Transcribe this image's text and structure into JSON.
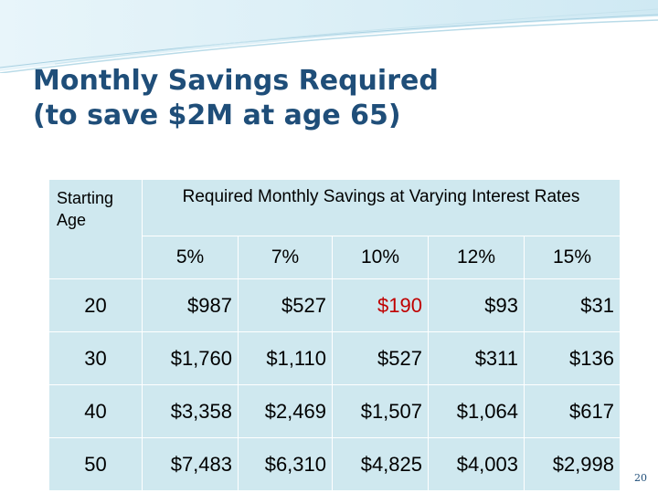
{
  "slide": {
    "title_line1": "Monthly Savings Required",
    "title_line2": "(to save $2M at age 65)",
    "page_number": "20"
  },
  "table": {
    "starting_age_header": "Starting Age",
    "required_header": "Required Monthly Savings at Varying Interest Rates",
    "rates": [
      "5%",
      "7%",
      "10%",
      "12%",
      "15%"
    ],
    "rows": [
      {
        "age": "20",
        "values": [
          "$987",
          "$527",
          "$190",
          "$93",
          "$31"
        ]
      },
      {
        "age": "30",
        "values": [
          "$1,760",
          "$1,110",
          "$527",
          "$311",
          "$136"
        ]
      },
      {
        "age": "40",
        "values": [
          "$3,358",
          "$2,469",
          "$1,507",
          "$1,064",
          "$617"
        ]
      },
      {
        "age": "50",
        "values": [
          "$7,483",
          "$6,310",
          "$4,825",
          "$4,003",
          "$2,998"
        ]
      }
    ],
    "highlight_color": "#c00000"
  },
  "colors": {
    "title": "#1f4e79",
    "table_fill": "#cfe8ef",
    "header_band": "#dff1f7"
  }
}
